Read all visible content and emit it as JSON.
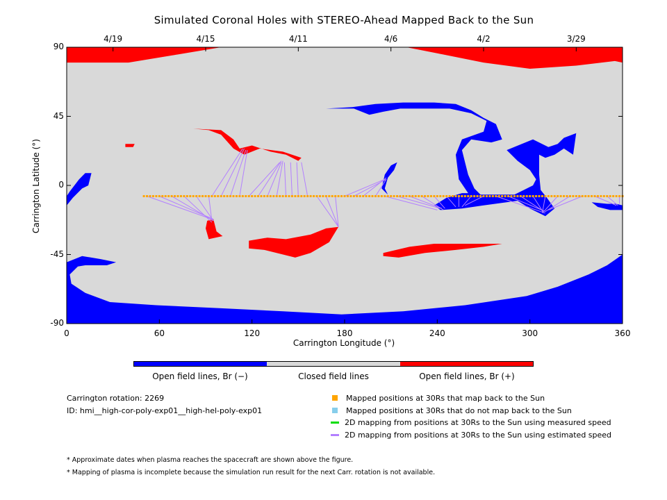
{
  "chart_data": {
    "type": "heatmap",
    "title": "Simulated Coronal Holes with STEREO-Ahead Mapped Back to the Sun",
    "xlabel": "Carrington Longitude (°)",
    "ylabel": "Carrington Latitude (°)",
    "xlim": [
      0,
      360
    ],
    "ylim": [
      -90,
      90
    ],
    "x_ticks": [
      "0",
      "60",
      "120",
      "180",
      "240",
      "300",
      "360"
    ],
    "y_ticks": [
      "90",
      "45",
      "0",
      "-45",
      "-90"
    ],
    "top_date_ticks": [
      {
        "label": "4/19",
        "lon": 30
      },
      {
        "label": "4/15",
        "lon": 90
      },
      {
        "label": "4/11",
        "lon": 150
      },
      {
        "label": "4/6",
        "lon": 210
      },
      {
        "label": "4/2",
        "lon": 270
      },
      {
        "label": "3/29",
        "lon": 330
      }
    ],
    "colors": {
      "open_negative": "#0000ff",
      "closed": "#d9d9d9",
      "open_positive": "#ff0000",
      "mapped_point": "#ffa500",
      "unmapped_point": "#87ceeb",
      "measured_speed_line": "#00dd00",
      "estimated_speed_line": "#b380ff"
    },
    "colorbar_labels": [
      "Open field lines, Br (−)",
      "Closed field lines",
      "Open field lines, Br (+)"
    ],
    "spacecraft_track": {
      "lat": -7,
      "lon_start": 50,
      "lon_end": 360,
      "step": 2
    },
    "mapping_lines": [
      {
        "from": [
          52,
          -7
        ],
        "to": [
          94,
          -22
        ]
      },
      {
        "from": [
          60,
          -7
        ],
        "to": [
          95,
          -22
        ]
      },
      {
        "from": [
          68,
          -7
        ],
        "to": [
          95,
          -23
        ]
      },
      {
        "from": [
          76,
          -7
        ],
        "to": [
          94,
          -24
        ]
      },
      {
        "from": [
          84,
          -7
        ],
        "to": [
          95,
          -23
        ]
      },
      {
        "from": [
          92,
          -7
        ],
        "to": [
          94,
          -23
        ]
      },
      {
        "from": [
          94,
          -7
        ],
        "to": [
          114,
          24
        ]
      },
      {
        "from": [
          100,
          -7
        ],
        "to": [
          115,
          24
        ]
      },
      {
        "from": [
          106,
          -7
        ],
        "to": [
          116,
          23
        ]
      },
      {
        "from": [
          112,
          -7
        ],
        "to": [
          117,
          23
        ]
      },
      {
        "from": [
          118,
          -7
        ],
        "to": [
          138,
          15
        ]
      },
      {
        "from": [
          124,
          -7
        ],
        "to": [
          139,
          16
        ]
      },
      {
        "from": [
          130,
          -7
        ],
        "to": [
          139,
          15
        ]
      },
      {
        "from": [
          136,
          -7
        ],
        "to": [
          140,
          16
        ]
      },
      {
        "from": [
          142,
          -7
        ],
        "to": [
          141,
          15
        ]
      },
      {
        "from": [
          146,
          -7
        ],
        "to": [
          145,
          15
        ]
      },
      {
        "from": [
          150,
          -7
        ],
        "to": [
          149,
          15
        ]
      },
      {
        "from": [
          156,
          -7
        ],
        "to": [
          152,
          15
        ]
      },
      {
        "from": [
          162,
          -7
        ],
        "to": [
          176,
          -27
        ]
      },
      {
        "from": [
          168,
          -7
        ],
        "to": [
          176,
          -27
        ]
      },
      {
        "from": [
          174,
          -7
        ],
        "to": [
          176,
          -27
        ]
      },
      {
        "from": [
          180,
          -7
        ],
        "to": [
          206,
          4
        ]
      },
      {
        "from": [
          186,
          -7
        ],
        "to": [
          207,
          4
        ]
      },
      {
        "from": [
          192,
          -7
        ],
        "to": [
          207,
          5
        ]
      },
      {
        "from": [
          200,
          -7
        ],
        "to": [
          207,
          4
        ]
      },
      {
        "from": [
          206,
          -7
        ],
        "to": [
          240,
          -16
        ]
      },
      {
        "from": [
          214,
          -7
        ],
        "to": [
          242,
          -15
        ]
      },
      {
        "from": [
          222,
          -7
        ],
        "to": [
          243,
          -15
        ]
      },
      {
        "from": [
          230,
          -7
        ],
        "to": [
          244,
          -16
        ]
      },
      {
        "from": [
          238,
          -7
        ],
        "to": [
          245,
          -15
        ]
      },
      {
        "from": [
          246,
          -7
        ],
        "to": [
          252,
          -14
        ]
      },
      {
        "from": [
          254,
          -7
        ],
        "to": [
          254,
          -14
        ]
      },
      {
        "from": [
          262,
          -7
        ],
        "to": [
          256,
          -14
        ]
      },
      {
        "from": [
          270,
          -7
        ],
        "to": [
          258,
          -13
        ]
      },
      {
        "from": [
          278,
          -7
        ],
        "to": [
          310,
          -18
        ]
      },
      {
        "from": [
          286,
          -7
        ],
        "to": [
          310,
          -17
        ]
      },
      {
        "from": [
          294,
          -7
        ],
        "to": [
          309,
          -17
        ]
      },
      {
        "from": [
          302,
          -7
        ],
        "to": [
          309,
          -18
        ]
      },
      {
        "from": [
          310,
          -7
        ],
        "to": [
          308,
          -18
        ]
      },
      {
        "from": [
          318,
          -7
        ],
        "to": [
          309,
          -17
        ]
      },
      {
        "from": [
          326,
          -7
        ],
        "to": [
          310,
          -17
        ]
      },
      {
        "from": [
          334,
          -7
        ],
        "to": [
          312,
          -16
        ]
      },
      {
        "from": [
          342,
          -7
        ],
        "to": [
          356,
          -13
        ]
      },
      {
        "from": [
          350,
          -7
        ],
        "to": [
          357,
          -13
        ]
      },
      {
        "from": [
          358,
          -7
        ],
        "to": [
          358,
          -12
        ]
      }
    ],
    "regions": {
      "positive": [
        [
          [
            0,
            80
          ],
          [
            40,
            80
          ],
          [
            70,
            85
          ],
          [
            100,
            90
          ],
          [
            0,
            90
          ]
        ],
        [
          [
            220,
            90
          ],
          [
            240,
            86
          ],
          [
            270,
            80
          ],
          [
            300,
            76
          ],
          [
            330,
            78
          ],
          [
            355,
            81
          ],
          [
            360,
            80
          ],
          [
            360,
            90
          ]
        ],
        [
          [
            82,
            37
          ],
          [
            100,
            36
          ],
          [
            108,
            30
          ],
          [
            112,
            24
          ],
          [
            120,
            26
          ],
          [
            132,
            22
          ],
          [
            142,
            20
          ],
          [
            150,
            16
          ],
          [
            152,
            18
          ],
          [
            140,
            22
          ],
          [
            125,
            24
          ],
          [
            115,
            20
          ],
          [
            108,
            24
          ],
          [
            100,
            33
          ],
          [
            92,
            36
          ]
        ],
        [
          [
            38,
            27
          ],
          [
            44,
            27
          ],
          [
            43,
            25
          ],
          [
            38,
            25
          ]
        ],
        [
          [
            91,
            -23
          ],
          [
            95,
            -22
          ],
          [
            97,
            -30
          ],
          [
            101,
            -33
          ],
          [
            92,
            -35
          ],
          [
            90,
            -28
          ]
        ],
        [
          [
            118,
            -36
          ],
          [
            130,
            -34
          ],
          [
            142,
            -35
          ],
          [
            158,
            -32
          ],
          [
            168,
            -28
          ],
          [
            176,
            -27
          ],
          [
            170,
            -37
          ],
          [
            158,
            -44
          ],
          [
            148,
            -47
          ],
          [
            128,
            -42
          ],
          [
            118,
            -41
          ]
        ],
        [
          [
            205,
            -44
          ],
          [
            222,
            -40
          ],
          [
            238,
            -38
          ],
          [
            252,
            -38
          ],
          [
            268,
            -38
          ],
          [
            282,
            -38
          ],
          [
            270,
            -40
          ],
          [
            252,
            -42
          ],
          [
            232,
            -44
          ],
          [
            215,
            -47
          ],
          [
            205,
            -46
          ]
        ]
      ],
      "negative": [
        [
          [
            0,
            -90
          ],
          [
            360,
            -90
          ],
          [
            360,
            -45
          ],
          [
            350,
            -52
          ],
          [
            338,
            -58
          ],
          [
            318,
            -66
          ],
          [
            298,
            -72
          ],
          [
            258,
            -78
          ],
          [
            218,
            -82
          ],
          [
            178,
            -84
          ],
          [
            140,
            -82
          ],
          [
            100,
            -80
          ],
          [
            58,
            -78
          ],
          [
            28,
            -76
          ],
          [
            12,
            -70
          ],
          [
            3,
            -64
          ],
          [
            2,
            -58
          ],
          [
            8,
            -52
          ],
          [
            0,
            -50
          ]
        ],
        [
          [
            0,
            -50
          ],
          [
            10,
            -46
          ],
          [
            22,
            -48
          ],
          [
            32,
            -50
          ],
          [
            26,
            -52
          ],
          [
            12,
            -52
          ],
          [
            0,
            -54
          ]
        ],
        [
          [
            168,
            50
          ],
          [
            185,
            51
          ],
          [
            200,
            53
          ],
          [
            218,
            54
          ],
          [
            238,
            54
          ],
          [
            252,
            53
          ],
          [
            262,
            49
          ],
          [
            270,
            44
          ],
          [
            278,
            40
          ],
          [
            282,
            30
          ],
          [
            275,
            28
          ],
          [
            262,
            30
          ],
          [
            256,
            23
          ],
          [
            258,
            15
          ],
          [
            260,
            7
          ],
          [
            264,
            -2
          ],
          [
            268,
            -6
          ],
          [
            290,
            -6
          ],
          [
            296,
            -3
          ],
          [
            302,
            0
          ],
          [
            304,
            4
          ],
          [
            300,
            10
          ],
          [
            292,
            16
          ],
          [
            285,
            23
          ],
          [
            302,
            30
          ],
          [
            312,
            25
          ],
          [
            318,
            27
          ],
          [
            322,
            31
          ],
          [
            330,
            34
          ],
          [
            328,
            20
          ],
          [
            322,
            24
          ],
          [
            316,
            20
          ],
          [
            310,
            18
          ],
          [
            306,
            20
          ],
          [
            306,
            7
          ],
          [
            307,
            -3
          ],
          [
            311,
            -8
          ],
          [
            316,
            -15
          ],
          [
            310,
            -20
          ],
          [
            300,
            -15
          ],
          [
            292,
            -10
          ],
          [
            270,
            -13
          ],
          [
            256,
            -15
          ],
          [
            242,
            -16
          ],
          [
            238,
            -13
          ],
          [
            246,
            -8
          ],
          [
            256,
            -5
          ],
          [
            260,
            -5
          ],
          [
            254,
            4
          ],
          [
            252,
            20
          ],
          [
            256,
            30
          ],
          [
            270,
            35
          ],
          [
            272,
            42
          ],
          [
            262,
            47
          ],
          [
            248,
            50
          ],
          [
            230,
            50
          ],
          [
            216,
            50
          ],
          [
            205,
            48
          ],
          [
            196,
            46
          ],
          [
            186,
            50
          ],
          [
            176,
            50
          ]
        ],
        [
          [
            4,
            -8
          ],
          [
            10,
            -2
          ],
          [
            14,
            0
          ],
          [
            16,
            8
          ],
          [
            12,
            8
          ],
          [
            8,
            4
          ],
          [
            2,
            -4
          ],
          [
            0,
            -7
          ],
          [
            0,
            -13
          ]
        ],
        [
          [
            208,
            5
          ],
          [
            212,
            10
          ],
          [
            214,
            15
          ],
          [
            210,
            13
          ],
          [
            206,
            7
          ],
          [
            204,
            -2
          ],
          [
            208,
            -6
          ],
          [
            206,
            -2
          ]
        ],
        [
          [
            340,
            -11
          ],
          [
            350,
            -12
          ],
          [
            356,
            -12
          ],
          [
            360,
            -13
          ],
          [
            360,
            -16
          ],
          [
            352,
            -16
          ],
          [
            344,
            -14
          ]
        ]
      ]
    },
    "info": {
      "carrington_rotation": "Carrington rotation: 2269",
      "id": "ID: hmi__high-cor-poly-exp01__high-hel-poly-exp01"
    },
    "legend": [
      {
        "label": "Mapped positions at 30Rs that map back to the Sun",
        "marker": "square",
        "color": "#ffa500"
      },
      {
        "label": "Mapped positions at 30Rs that do not map back to the Sun",
        "marker": "square",
        "color": "#87ceeb"
      },
      {
        "label": "2D mapping from positions at 30Rs to the Sun using measured speed",
        "marker": "line",
        "color": "#00dd00"
      },
      {
        "label": "2D mapping from positions at 30Rs to the Sun using estimated speed",
        "marker": "line",
        "color": "#b380ff"
      }
    ],
    "notes": [
      "* Approximate dates when plasma reaches the spacecraft are shown above the figure.",
      "* Mapping of plasma is incomplete because the simulation run result for the next Carr. rotation is not available."
    ]
  }
}
